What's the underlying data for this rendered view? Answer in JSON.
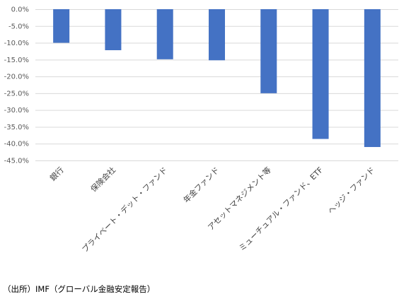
{
  "chart_data": {
    "type": "bar",
    "categories": [
      "銀行",
      "保険会社",
      "プライベート・デット・ファンド",
      "年金ファンド",
      "アセットマネジメント等",
      "ミューチュアル・ファンド、ETF",
      "ヘッジ・ファンド"
    ],
    "values": [
      -10.0,
      -12.2,
      -14.9,
      -15.2,
      -25.0,
      -38.6,
      -41.0
    ],
    "y_ticks": [
      "0.0%",
      "-5.0%",
      "-10.0%",
      "-15.0%",
      "-20.0%",
      "-25.0%",
      "-30.0%",
      "-35.0%",
      "-40.0%",
      "-45.0%"
    ],
    "ylim": [
      -45,
      0
    ],
    "y_unit": "%",
    "grid": true,
    "bar_color": "#4472c4",
    "grid_color": "#d9d9d9"
  },
  "source_note": "（出所）IMF（グローバル金融安定報告）"
}
